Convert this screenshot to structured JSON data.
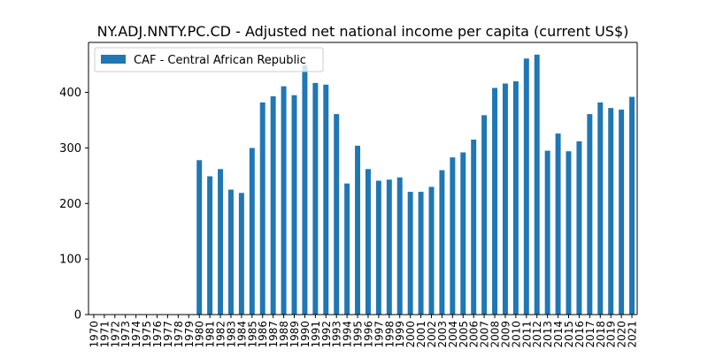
{
  "chart_data": {
    "type": "bar",
    "title": "NY.ADJ.NNTY.PC.CD - Adjusted net national income per capita (current US$)",
    "xlabel": "",
    "ylabel": "",
    "ylim": [
      0,
      490
    ],
    "yticks": [
      0,
      100,
      200,
      300,
      400
    ],
    "grid": false,
    "legend_position": "top-left",
    "categories": [
      "1970",
      "1971",
      "1972",
      "1973",
      "1974",
      "1975",
      "1976",
      "1977",
      "1978",
      "1979",
      "1980",
      "1981",
      "1982",
      "1983",
      "1984",
      "1985",
      "1986",
      "1987",
      "1988",
      "1989",
      "1990",
      "1991",
      "1992",
      "1993",
      "1994",
      "1995",
      "1996",
      "1997",
      "1998",
      "1999",
      "2000",
      "2001",
      "2002",
      "2003",
      "2004",
      "2005",
      "2006",
      "2007",
      "2008",
      "2009",
      "2010",
      "2011",
      "2012",
      "2013",
      "2014",
      "2015",
      "2016",
      "2017",
      "2018",
      "2019",
      "2020",
      "2021"
    ],
    "series": [
      {
        "name": "CAF - Central African Republic",
        "color": "#1f77b4",
        "values": [
          null,
          null,
          null,
          null,
          null,
          null,
          null,
          null,
          null,
          null,
          278,
          249,
          262,
          225,
          219,
          300,
          382,
          393,
          411,
          395,
          449,
          417,
          414,
          361,
          236,
          304,
          262,
          241,
          243,
          247,
          221,
          221,
          230,
          260,
          283,
          292,
          315,
          359,
          408,
          416,
          420,
          461,
          468,
          295,
          326,
          294,
          312,
          361,
          382,
          372,
          369,
          392
        ]
      }
    ]
  }
}
